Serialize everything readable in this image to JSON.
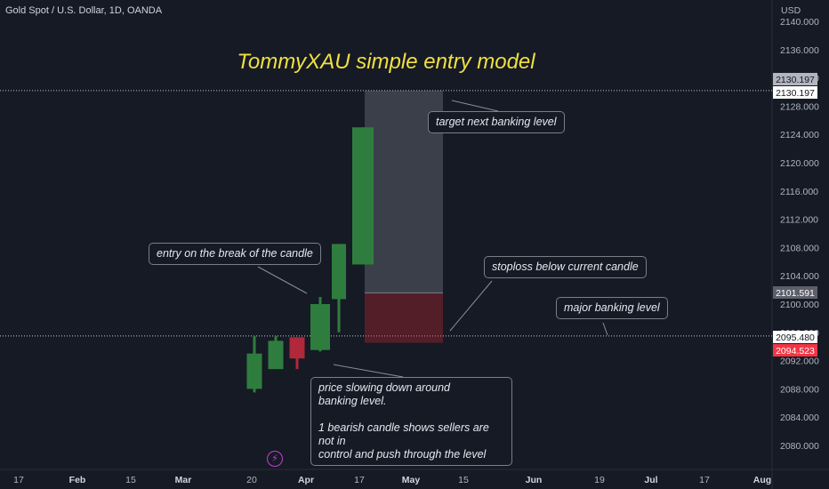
{
  "symbol": "Gold Spot / U.S. Dollar, 1D, OANDA",
  "currency": "USD",
  "title": "TommyXAU simple entry model",
  "callouts": {
    "target": "target next banking level",
    "entry": "entry on the break of the candle",
    "stoploss": "stoploss below current candle",
    "major": "major banking level",
    "price": "price slowing down around\nbanking level.\n\n1 bearish candle shows sellers are not in\ncontrol and push through the level"
  },
  "price_badges": [
    {
      "label": "2130.197",
      "value": 2130.197,
      "color": "#b2b5be",
      "text_color": "#131722"
    },
    {
      "label": "2130.197",
      "value": 2130.197,
      "color": "#ffffff",
      "text_color": "#131722"
    },
    {
      "label": "2101.591",
      "value": 2101.591,
      "color": "#5d606b",
      "text_color": "#ffffff"
    },
    {
      "label": "2095.480",
      "value": 2095.48,
      "color": "#ffffff",
      "text_color": "#131722"
    },
    {
      "label": "2094.523",
      "value": 2094.523,
      "color": "#f23645",
      "text_color": "#ffffff"
    }
  ],
  "chart_data": {
    "type": "candlestick",
    "y_ticks": [
      "2080.000",
      "2084.000",
      "2088.000",
      "2092.000",
      "2096.000",
      "2100.000",
      "2104.000",
      "2108.000",
      "2112.000",
      "2116.000",
      "2120.000",
      "2124.000",
      "2128.000",
      "2132.000",
      "2136.000",
      "2140.000"
    ],
    "ylim": [
      2077.5,
      2142.5
    ],
    "x_ticks": [
      {
        "label": "17",
        "bold": false
      },
      {
        "label": "Feb",
        "bold": true
      },
      {
        "label": "15",
        "bold": false
      },
      {
        "label": "Mar",
        "bold": true
      },
      {
        "label": "20",
        "bold": false
      },
      {
        "label": "Apr",
        "bold": true
      },
      {
        "label": "17",
        "bold": false
      },
      {
        "label": "May",
        "bold": true
      },
      {
        "label": "15",
        "bold": false
      },
      {
        "label": "Jun",
        "bold": true
      },
      {
        "label": "19",
        "bold": false
      },
      {
        "label": "Jul",
        "bold": true
      },
      {
        "label": "17",
        "bold": false
      },
      {
        "label": "Aug",
        "bold": true
      }
    ],
    "candles": [
      {
        "open": 2088.0,
        "high": 2095.5,
        "low": 2087.5,
        "close": 2093.0
      },
      {
        "open": 2090.8,
        "high": 2095.5,
        "low": 2090.8,
        "close": 2094.8
      },
      {
        "open": 2095.3,
        "high": 2095.3,
        "low": 2090.8,
        "close": 2092.3
      },
      {
        "open": 2093.5,
        "high": 2101.0,
        "low": 2093.3,
        "close": 2100.0
      },
      {
        "open": 2100.7,
        "high": 2108.5,
        "low": 2096.0,
        "close": 2108.5
      },
      {
        "open": 2105.6,
        "high": 2125.0,
        "low": 2105.6,
        "close": 2125.0
      }
    ],
    "levels": {
      "major_banking": 2095.48,
      "target": 2130.197
    },
    "position": {
      "entry": 2101.591,
      "stop": 2094.523,
      "target": 2130.197
    }
  }
}
